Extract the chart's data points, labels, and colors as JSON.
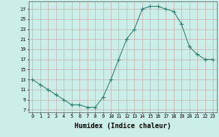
{
  "x": [
    0,
    1,
    2,
    3,
    4,
    5,
    6,
    7,
    8,
    9,
    10,
    11,
    12,
    13,
    14,
    15,
    16,
    17,
    18,
    19,
    20,
    21,
    22,
    23
  ],
  "y": [
    13,
    12,
    11,
    10,
    9,
    8,
    8,
    7.5,
    7.5,
    9.5,
    13,
    17,
    21,
    23,
    27,
    27.5,
    27.5,
    27,
    26.5,
    24,
    19.5,
    18,
    17,
    17
  ],
  "line_color": "#2e7d6e",
  "marker": "+",
  "marker_size": 4,
  "marker_color": "#2e7d6e",
  "bg_color": "#cceee8",
  "grid_color": "#c8a8a8",
  "xlabel": "Humidex (Indice chaleur)",
  "xlabel_fontsize": 7,
  "ylabel_ticks": [
    7,
    9,
    11,
    13,
    15,
    17,
    19,
    21,
    23,
    25,
    27
  ],
  "xticks": [
    0,
    1,
    2,
    3,
    4,
    5,
    6,
    7,
    8,
    9,
    10,
    11,
    12,
    13,
    14,
    15,
    16,
    17,
    18,
    19,
    20,
    21,
    22,
    23
  ],
  "xlim": [
    -0.5,
    23.5
  ],
  "ylim": [
    6.5,
    28.5
  ]
}
